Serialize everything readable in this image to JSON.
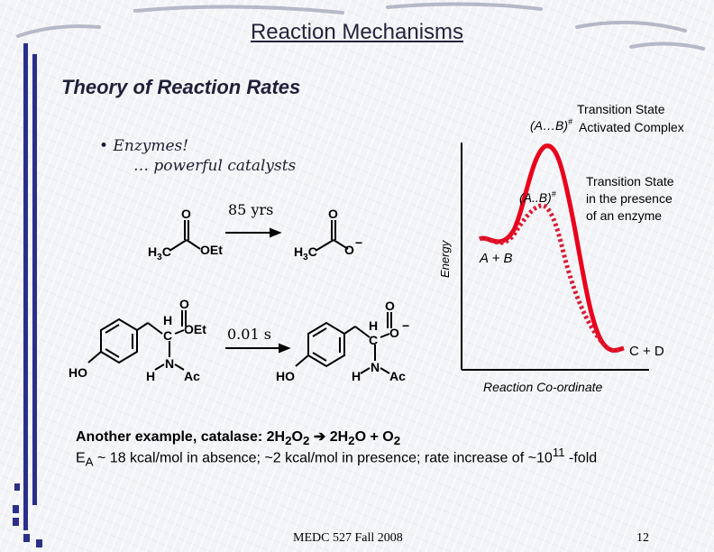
{
  "slide": {
    "title": "Reaction Mechanisms",
    "subtitle": "Theory of Reaction Rates",
    "bullet": "• Enzymes!",
    "bullet_sub": "… powerful catalysts"
  },
  "reaction_top": {
    "time": "85 yrs",
    "left_group": "OEt",
    "right_group": "O"
  },
  "reaction_bottom": {
    "time": "0.01 s",
    "ho": "HO",
    "h": "H",
    "n": "N",
    "c": "C",
    "o": "O",
    "oet": "OEt",
    "ac": "Ac"
  },
  "energy_diagram": {
    "y_axis_label": "Energy",
    "x_axis_label": "Reaction Co-ordinate",
    "ts_uncatalyzed_line1": "Transition State",
    "ts_uncatalyzed_symbol": "(A…B)",
    "ts_uncatalyzed_sup": "#",
    "ts_uncatalyzed_line2": "Activated Complex",
    "ts_enzyme_symbol": "(A..B)",
    "ts_enzyme_sup": "#",
    "ts_enzyme_line1": "Transition State",
    "ts_enzyme_line2": "in the presence",
    "ts_enzyme_line3": "of an enzyme",
    "reactants": "A + B",
    "products": "C + D",
    "colors": {
      "uncatalyzed": "#e8001c",
      "catalyzed": "#d81c34"
    }
  },
  "bottom_text": {
    "line1_prefix": "Another example, catalase:  2H",
    "line1_sub1": "2",
    "line1_o1": "O",
    "line1_sub2": "2",
    "line1_arrow": "➔",
    "line1_mid": " 2H",
    "line1_sub3": "2",
    "line1_o2": "O + O",
    "line1_sub4": "2",
    "line2_e": "E",
    "line2_sub": "A",
    "line2_text": " ~ 18 kcal/mol in absence; ~2 kcal/mol in presence; rate increase of ~10",
    "line2_sup": "11",
    "line2_end": " -fold"
  },
  "footer": {
    "course": "MEDC 527 Fall 2008",
    "page": "12"
  }
}
